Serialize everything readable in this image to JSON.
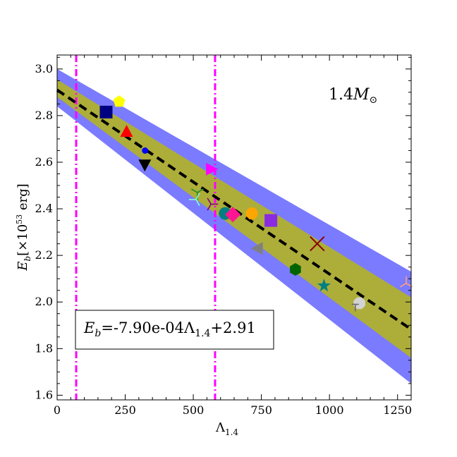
{
  "chart_data": {
    "type": "scatter",
    "title": "",
    "mass_label": {
      "base": "1.4",
      "symbol": "M",
      "subscript": "⊙"
    },
    "xlabel": {
      "base": "Λ",
      "sub": "1.4"
    },
    "ylabel": {
      "base": "E",
      "sub": "b",
      "unit": "[×10",
      "exp": "53",
      "unit_end": " erg]"
    },
    "xlim": [
      0,
      1300
    ],
    "ylim": [
      1.58,
      3.06
    ],
    "xticks": [
      0,
      250,
      500,
      750,
      1000,
      1250
    ],
    "yticks": [
      1.6,
      1.8,
      2.0,
      2.2,
      2.4,
      2.6,
      2.8,
      3.0
    ],
    "xtick_labels": [
      "0",
      "250",
      "500",
      "750",
      "1000",
      "1250"
    ],
    "ytick_labels": [
      "1.6",
      "1.8",
      "2.0",
      "2.2",
      "2.4",
      "2.6",
      "2.8",
      "3.0"
    ],
    "fit": {
      "slope": -0.00079,
      "intercept": 2.91,
      "color": "#000000"
    },
    "fit_label": {
      "lhs": "E",
      "lhs_sub": "b",
      "rhs": "=-7.90e-04Λ",
      "rhs_sub": "1.4",
      "rhs_end": "+2.91"
    },
    "bands": [
      {
        "name": "outer",
        "color": "#7b7bff",
        "upper_intercept": 3.0,
        "upper_end": 2.13,
        "lower_intercept": 2.84,
        "lower_end": 1.65
      },
      {
        "name": "inner",
        "color": "#adad3a",
        "upper_intercept": 2.955,
        "upper_end": 2.02,
        "lower_intercept": 2.88,
        "lower_end": 1.76
      }
    ],
    "vlines": [
      {
        "x": 70,
        "color": "#ff00ff"
      },
      {
        "x": 580,
        "color": "#ff00ff"
      }
    ],
    "points": [
      {
        "x": 228,
        "y": 2.86,
        "marker": "pentagon",
        "color": "#ffff00"
      },
      {
        "x": 180,
        "y": 2.815,
        "marker": "square",
        "color": "#000080"
      },
      {
        "x": 255,
        "y": 2.73,
        "marker": "triangle-up",
        "color": "#ff0000"
      },
      {
        "x": 323,
        "y": 2.65,
        "marker": "circle-small",
        "color": "#0000ff"
      },
      {
        "x": 322,
        "y": 2.59,
        "marker": "triangle-down",
        "color": "#000000"
      },
      {
        "x": 565,
        "y": 2.57,
        "marker": "triangle-right",
        "color": "#ff00ff"
      },
      {
        "x": 515,
        "y": 2.47,
        "marker": "tri-down",
        "color": "#228b22"
      },
      {
        "x": 510,
        "y": 2.44,
        "marker": "tri-left",
        "color": "#7fffd4"
      },
      {
        "x": 565,
        "y": 2.42,
        "marker": "tri-right",
        "color": "#800080"
      },
      {
        "x": 617,
        "y": 2.38,
        "marker": "circle",
        "color": "#008080"
      },
      {
        "x": 645,
        "y": 2.375,
        "marker": "diamond",
        "color": "#ff1493"
      },
      {
        "x": 715,
        "y": 2.38,
        "marker": "octagon",
        "color": "#ffa500"
      },
      {
        "x": 785,
        "y": 2.35,
        "marker": "square",
        "color": "#8a2be2"
      },
      {
        "x": 737,
        "y": 2.23,
        "marker": "triangle-left",
        "color": "#808080"
      },
      {
        "x": 955,
        "y": 2.25,
        "marker": "x",
        "color": "#8b0000"
      },
      {
        "x": 875,
        "y": 2.14,
        "marker": "hexagon",
        "color": "#006400"
      },
      {
        "x": 980,
        "y": 2.07,
        "marker": "star",
        "color": "#008080"
      },
      {
        "x": 1110,
        "y": 1.995,
        "marker": "octagon",
        "color": "#d3d3d3"
      },
      {
        "x": 1095,
        "y": 1.99,
        "marker": "tick-plus",
        "color": "#696969"
      },
      {
        "x": 1282,
        "y": 2.08,
        "marker": "tri-up",
        "color": "#ffa07a"
      }
    ]
  }
}
